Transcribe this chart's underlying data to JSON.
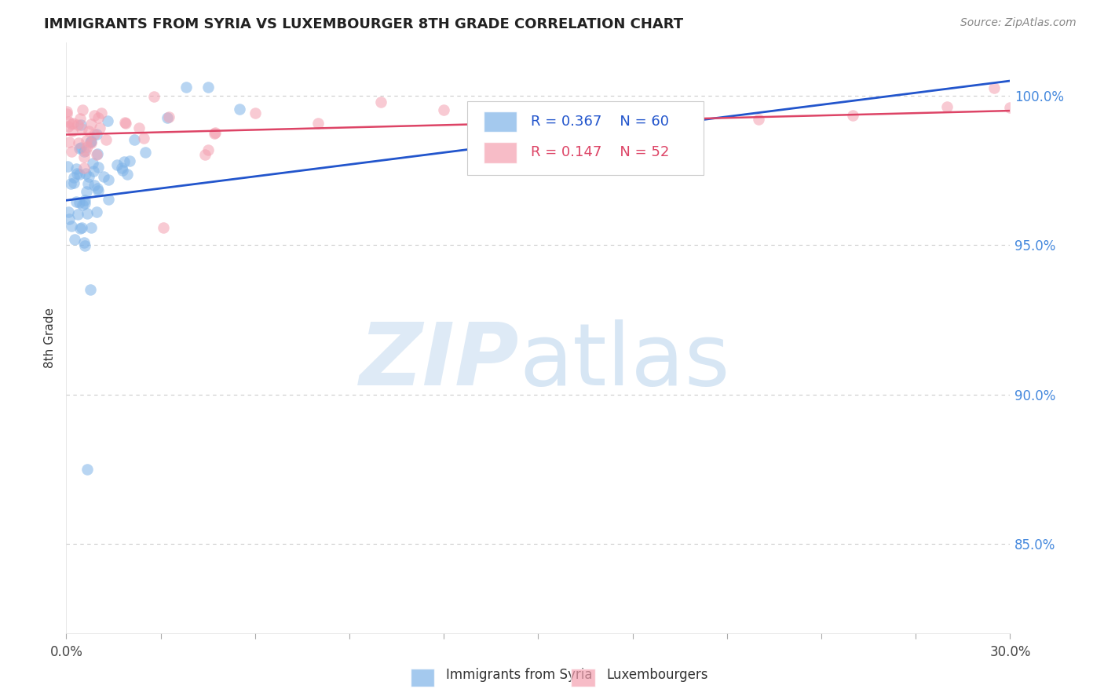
{
  "title": "IMMIGRANTS FROM SYRIA VS LUXEMBOURGER 8TH GRADE CORRELATION CHART",
  "source": "Source: ZipAtlas.com",
  "ylabel": "8th Grade",
  "right_yticks": [
    100.0,
    95.0,
    90.0,
    85.0
  ],
  "right_ytick_labels": [
    "100.0%",
    "95.0%",
    "90.0%",
    "85.0%"
  ],
  "xlim": [
    0.0,
    30.0
  ],
  "ylim": [
    82.0,
    101.8
  ],
  "blue_R": 0.367,
  "blue_N": 60,
  "pink_R": 0.147,
  "pink_N": 52,
  "blue_label": "Immigrants from Syria",
  "pink_label": "Luxembourgers",
  "blue_color": "#7EB3E8",
  "pink_color": "#F4A0B0",
  "blue_line_color": "#2255CC",
  "pink_line_color": "#DD4466",
  "watermark_zip": "ZIP",
  "watermark_atlas": "atlas",
  "background_color": "#ffffff",
  "title_color": "#222222",
  "right_axis_color": "#4488DD",
  "ylabel_color": "#333333",
  "grid_color": "#cccccc",
  "blue_line_x0": 0.0,
  "blue_line_y0": 96.5,
  "blue_line_x1": 30.0,
  "blue_line_y1": 100.5,
  "pink_line_x0": 0.0,
  "pink_line_y0": 98.7,
  "pink_line_x1": 30.0,
  "pink_line_y1": 99.5
}
